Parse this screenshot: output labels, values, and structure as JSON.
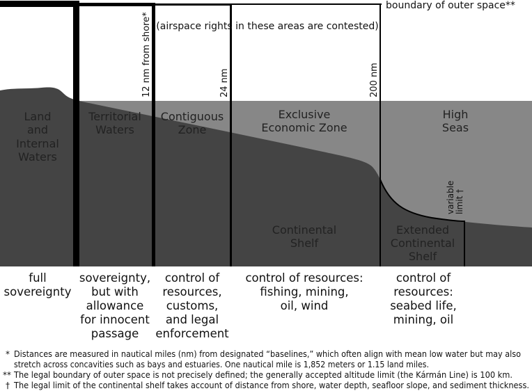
{
  "colors": {
    "sky": "#ffffff",
    "sea": "#878787",
    "seabed": "#444444",
    "line": "#000000"
  },
  "top_labels": {
    "outer_space": "boundary of outer space**",
    "airspace": "(airspace rights in these areas are contested)"
  },
  "boundary_labels": {
    "nm12": "12 nm from shore*",
    "nm24": "24 nm",
    "nm200": "200 nm",
    "variable_limit": [
      "variable",
      "limit †"
    ]
  },
  "zones": {
    "land": [
      "Land",
      "and",
      "Internal",
      "Waters"
    ],
    "territorial": [
      "Territorial",
      "Waters"
    ],
    "contiguous": [
      "Contiguous",
      "Zone"
    ],
    "eez": [
      "Exclusive",
      "Economic Zone"
    ],
    "high_seas": [
      "High",
      "Seas"
    ],
    "shelf": [
      "Continental",
      "Shelf"
    ],
    "extended_shelf": [
      "Extended",
      "Continental",
      "Shelf"
    ]
  },
  "rights": {
    "land": [
      "full",
      "sovereignty"
    ],
    "territorial": [
      "sovereignty,",
      "but with",
      "allowance",
      "for innocent",
      "passage"
    ],
    "contiguous": [
      "control of",
      "resources,",
      "customs,",
      "and legal",
      "enforcement"
    ],
    "eez": [
      "control of resources:",
      "fishing, mining,",
      "oil, wind"
    ],
    "high_seas": [
      "control of",
      "resources:",
      "seabed life,",
      "mining, oil"
    ]
  },
  "footnotes": [
    {
      "mark": "*",
      "lines": [
        "Distances are measured in nautical miles (nm) from designated “baselines,” which often align with mean low water but may also",
        "stretch across concavities such as bays and estuaries. One nautical mile is 1,852 meters or 1.15 land miles."
      ]
    },
    {
      "mark": "**",
      "lines": [
        "The legal boundary of outer space is not precisely defined; the generally accepted altitude limit (the Kármán Line) is 100 km."
      ]
    },
    {
      "mark": "†",
      "lines": [
        "The legal limit of the continental shelf takes account of distance from shore, water depth, seafloor slope, and sediment thickness."
      ]
    }
  ]
}
